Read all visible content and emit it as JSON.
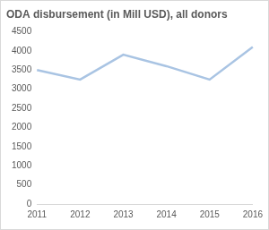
{
  "chart_data": {
    "type": "line",
    "title": "ODA disbursement (in Mill USD), all donors",
    "categories": [
      "2011",
      "2012",
      "2013",
      "2014",
      "2015",
      "2016"
    ],
    "values": [
      3500,
      3250,
      3900,
      3600,
      3250,
      4100
    ],
    "color": "#a9c4e3",
    "ylim": [
      0,
      4500
    ],
    "yticks": [
      0,
      500,
      1000,
      1500,
      2000,
      2500,
      3000,
      3500,
      4000,
      4500
    ],
    "grid": false
  }
}
